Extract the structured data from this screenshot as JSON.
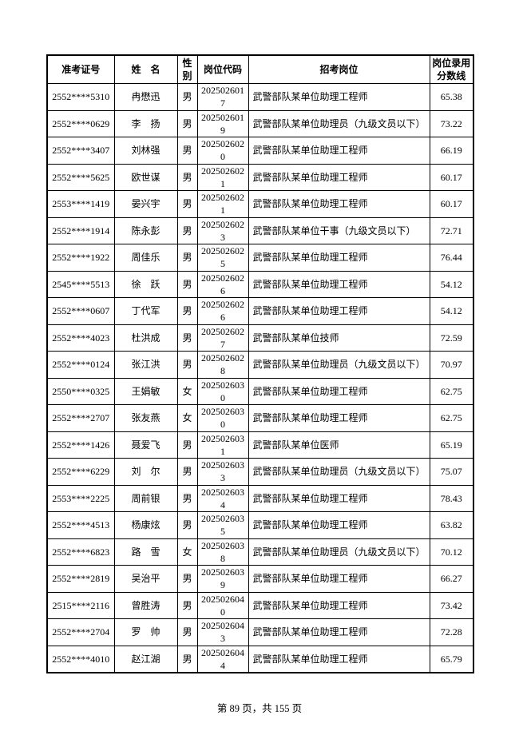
{
  "colors": {
    "border": "#000000",
    "text": "#000000",
    "background": "#ffffff"
  },
  "footer": {
    "text": "第 89 页，共 155 页",
    "current_page": "89",
    "total_pages": "155"
  },
  "table": {
    "headers": [
      "准考证号",
      "姓　名",
      "性别",
      "岗位代码",
      "招考岗位",
      "岗位录用分数线"
    ],
    "column_names": [
      "ticket-number",
      "name",
      "gender",
      "position-code",
      "position-title",
      "score-line"
    ],
    "rows": [
      [
        "2552****5310",
        "冉懋迅",
        "男",
        "2025026017",
        "武警部队某单位助理工程师",
        "65.38"
      ],
      [
        "2552****0629",
        "李　扬",
        "男",
        "2025026019",
        "武警部队某单位助理员（九级文员以下）",
        "73.22"
      ],
      [
        "2552****3407",
        "刘林强",
        "男",
        "2025026020",
        "武警部队某单位助理工程师",
        "66.19"
      ],
      [
        "2552****5625",
        "欧世谋",
        "男",
        "2025026021",
        "武警部队某单位助理工程师",
        "60.17"
      ],
      [
        "2553****1419",
        "晏兴宇",
        "男",
        "2025026021",
        "武警部队某单位助理工程师",
        "60.17"
      ],
      [
        "2552****1914",
        "陈永彭",
        "男",
        "2025026023",
        "武警部队某单位干事（九级文员以下）",
        "72.71"
      ],
      [
        "2552****1922",
        "周佳乐",
        "男",
        "2025026025",
        "武警部队某单位助理工程师",
        "76.44"
      ],
      [
        "2545****5513",
        "徐　跃",
        "男",
        "2025026026",
        "武警部队某单位助理工程师",
        "54.12"
      ],
      [
        "2552****0607",
        "丁代军",
        "男",
        "2025026026",
        "武警部队某单位助理工程师",
        "54.12"
      ],
      [
        "2552****4023",
        "杜洪成",
        "男",
        "2025026027",
        "武警部队某单位技师",
        "72.59"
      ],
      [
        "2552****0124",
        "张江洪",
        "男",
        "2025026028",
        "武警部队某单位助理员（九级文员以下）",
        "70.97"
      ],
      [
        "2550****0325",
        "王娟敏",
        "女",
        "2025026030",
        "武警部队某单位助理工程师",
        "62.75"
      ],
      [
        "2552****2707",
        "张友燕",
        "女",
        "2025026030",
        "武警部队某单位助理工程师",
        "62.75"
      ],
      [
        "2552****1426",
        "聂爱飞",
        "男",
        "2025026031",
        "武警部队某单位医师",
        "65.19"
      ],
      [
        "2552****6229",
        "刘　尔",
        "男",
        "2025026033",
        "武警部队某单位助理员（九级文员以下）",
        "75.07"
      ],
      [
        "2553****2225",
        "周前银",
        "男",
        "2025026034",
        "武警部队某单位助理工程师",
        "78.43"
      ],
      [
        "2552****4513",
        "杨康炫",
        "男",
        "2025026035",
        "武警部队某单位助理工程师",
        "63.82"
      ],
      [
        "2552****6823",
        "路　雪",
        "女",
        "2025026038",
        "武警部队某单位助理员（九级文员以下）",
        "70.12"
      ],
      [
        "2552****2819",
        "吴治平",
        "男",
        "2025026039",
        "武警部队某单位助理工程师",
        "66.27"
      ],
      [
        "2515****2116",
        "曾胜涛",
        "男",
        "2025026040",
        "武警部队某单位助理工程师",
        "73.42"
      ],
      [
        "2552****2704",
        "罗　帅",
        "男",
        "2025026043",
        "武警部队某单位助理工程师",
        "72.28"
      ],
      [
        "2552****4010",
        "赵江湖",
        "男",
        "2025026044",
        "武警部队某单位助理工程师",
        "65.79"
      ]
    ]
  }
}
